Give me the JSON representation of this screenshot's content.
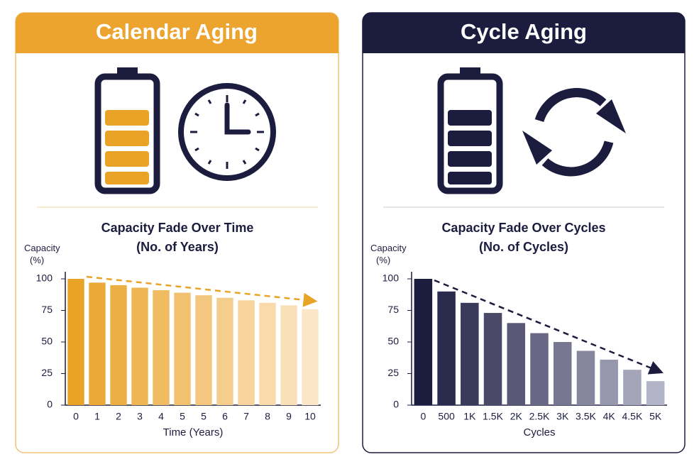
{
  "panels": [
    {
      "heading": "Calendar Aging"
    },
    {
      "heading": "Cycle Aging"
    }
  ],
  "chart_data": [
    {
      "type": "bar",
      "title": "Capacity Fade Over Time",
      "subtitle": "(No. of Years)",
      "y_label": "Capacity\n(%)",
      "x_label": "Time (Years)",
      "categories": [
        "0",
        "1",
        "2",
        "3",
        "4",
        "5",
        "5",
        "6",
        "7",
        "8",
        "9",
        "10"
      ],
      "values": [
        100,
        97,
        95,
        93,
        91,
        89,
        87,
        85,
        83,
        81,
        79,
        76
      ],
      "color": "#e9a326",
      "fade_color": "#fbe6c8",
      "ylim": [
        0,
        100
      ],
      "yticks": [
        0,
        25,
        50,
        75,
        100
      ]
    },
    {
      "type": "bar",
      "title": "Capacity Fade Over Cycles",
      "subtitle": "(No. of Cycles)",
      "y_label": "Capacity\n(%)",
      "x_label": "Cycles",
      "categories": [
        "0",
        "500",
        "1K",
        "1.5K",
        "2K",
        "2.5K",
        "3K",
        "3.5K",
        "4K",
        "4.5K",
        "5K"
      ],
      "values": [
        100,
        90,
        81,
        73,
        65,
        57,
        50,
        43,
        36,
        28,
        19
      ],
      "color": "#1c1c3f",
      "fade_color": "#b4b4c8",
      "ylim": [
        0,
        100
      ],
      "yticks": [
        0,
        25,
        50,
        75,
        100
      ]
    }
  ]
}
